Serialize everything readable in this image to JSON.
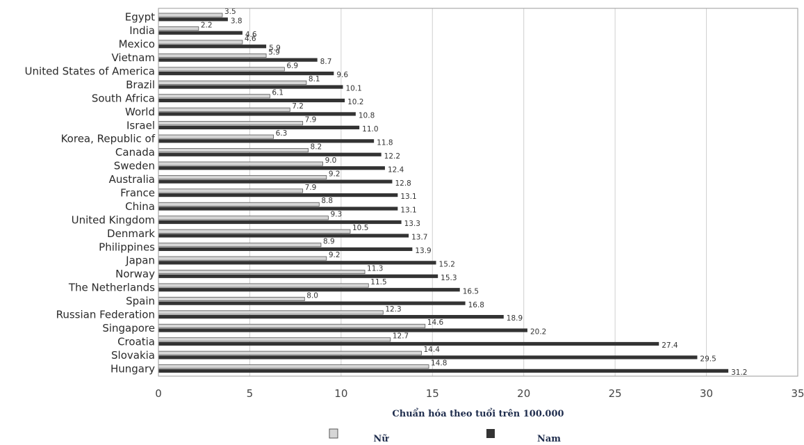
{
  "chart_data": {
    "type": "bar",
    "orientation": "horizontal",
    "categories": [
      "Egypt",
      "India",
      "Mexico",
      "Vietnam",
      "United States of America",
      "Brazil",
      "South Africa",
      "World",
      "Israel",
      "Korea, Republic of",
      "Canada",
      "Sweden",
      "Australia",
      "France",
      "China",
      "United Kingdom",
      "Denmark",
      "Philippines",
      "Japan",
      "Norway",
      "The Netherlands",
      "Spain",
      "Russian Federation",
      "Singapore",
      "Croatia",
      "Slovakia",
      "Hungary"
    ],
    "series": [
      {
        "name": "Nữ",
        "color": "#d6d6d6",
        "values": [
          3.5,
          2.2,
          4.6,
          5.9,
          6.9,
          8.1,
          6.1,
          7.2,
          7.9,
          6.3,
          8.2,
          9.0,
          9.2,
          7.9,
          8.8,
          9.3,
          10.5,
          8.9,
          9.2,
          11.3,
          11.5,
          8.0,
          12.3,
          14.6,
          12.7,
          14.4,
          14.8
        ]
      },
      {
        "name": "Nam",
        "color": "#333333",
        "values": [
          3.8,
          4.6,
          5.9,
          8.7,
          9.6,
          10.1,
          10.2,
          10.8,
          11.0,
          11.8,
          12.2,
          12.4,
          12.8,
          13.1,
          13.1,
          13.3,
          13.7,
          13.9,
          15.2,
          15.3,
          16.5,
          16.8,
          18.9,
          20.2,
          27.4,
          29.5,
          31.2
        ]
      }
    ],
    "value_labels": {
      "female": [
        "3.5",
        "2.2",
        "4.6",
        "5.9",
        "6.9",
        "8.1",
        "6.1",
        "7.2",
        "7.9",
        "6.3",
        "8.2",
        "9.0",
        "9.2",
        "7.9",
        "8.8",
        "9.3",
        "10.5",
        "8.9",
        "9.2",
        "11.3",
        "11.5",
        "8.0",
        "12.3",
        "14.6",
        "12.7",
        "14.4",
        "14.8"
      ],
      "male": [
        "3.8",
        "4.6",
        "5.9",
        "8.7",
        "9.6",
        "10.1",
        "10.2",
        "10.8",
        "11.0",
        "11.8",
        "12.2",
        "12.4",
        "12.8",
        "13.1",
        "13.1",
        "13.3",
        "13.7",
        "13.9",
        "15.2",
        "15.3",
        "16.5",
        "16.8",
        "18.9",
        "20.2",
        "27.4",
        "29.5",
        "31.2"
      ]
    },
    "xlim": [
      0,
      35
    ],
    "xticks": [
      "0",
      "5",
      "10",
      "15",
      "20",
      "25",
      "30",
      "35"
    ],
    "xlabel": "Chuẩn hóa theo tuổi trên 100.000",
    "legend": {
      "placement": "bottom-center",
      "female": "Nữ",
      "male": "Nam"
    },
    "grid": "vertical"
  }
}
